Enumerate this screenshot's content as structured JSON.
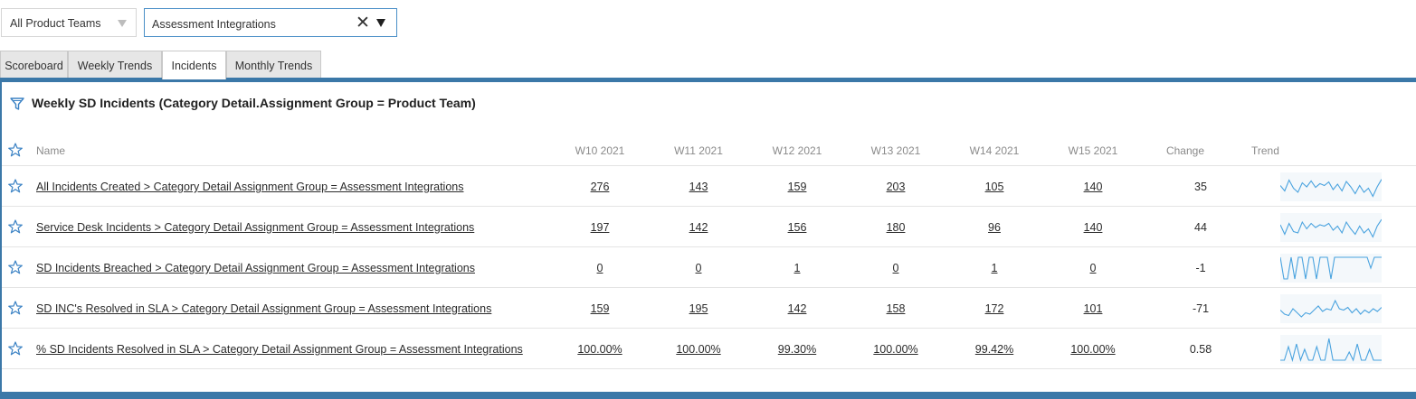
{
  "filters": {
    "product_teams": {
      "value": "All Product Teams"
    },
    "team": {
      "value": "Assessment Integrations",
      "clear_label": "✕"
    }
  },
  "tabs": [
    {
      "label": "Scoreboard",
      "active": false
    },
    {
      "label": "Weekly Trends",
      "active": false
    },
    {
      "label": "Incidents",
      "active": true
    },
    {
      "label": "Monthly Trends",
      "active": false
    }
  ],
  "panel": {
    "title": "Weekly SD Incidents (Category Detail.Assignment Group = Product Team)",
    "columns": {
      "name": "Name",
      "weeks": [
        "W10 2021",
        "W11 2021",
        "W12 2021",
        "W13 2021",
        "W14 2021",
        "W15 2021"
      ],
      "change": "Change",
      "trend": "Trend"
    },
    "rows": [
      {
        "name": "All Incidents Created > Category Detail Assignment Group = Assessment Integrations",
        "values": [
          "276",
          "143",
          "159",
          "203",
          "105",
          "140"
        ],
        "change": "35",
        "trend": [
          0.55,
          0.35,
          0.75,
          0.45,
          0.3,
          0.65,
          0.5,
          0.72,
          0.48,
          0.62,
          0.55,
          0.68,
          0.4,
          0.6,
          0.35,
          0.7,
          0.5,
          0.25,
          0.55,
          0.3,
          0.45,
          0.15,
          0.5,
          0.78
        ]
      },
      {
        "name": "Service Desk Incidents > Category Detail Assignment Group = Assessment Integrations",
        "values": [
          "197",
          "142",
          "156",
          "180",
          "96",
          "140"
        ],
        "change": "44",
        "trend": [
          0.6,
          0.25,
          0.65,
          0.35,
          0.3,
          0.7,
          0.45,
          0.65,
          0.5,
          0.6,
          0.55,
          0.65,
          0.4,
          0.55,
          0.3,
          0.7,
          0.45,
          0.25,
          0.55,
          0.3,
          0.45,
          0.15,
          0.55,
          0.8
        ]
      },
      {
        "name": "SD Incidents Breached > Category Detail Assignment Group = Assessment Integrations",
        "values": [
          "0",
          "0",
          "1",
          "0",
          "1",
          "0"
        ],
        "change": "-1",
        "trend": [
          0.9,
          0.1,
          0.1,
          0.9,
          0.1,
          0.9,
          0.9,
          0.1,
          0.9,
          0.9,
          0.1,
          0.9,
          0.9,
          0.9,
          0.1,
          0.9,
          0.9,
          0.9,
          0.9,
          0.9,
          0.9,
          0.9,
          0.9,
          0.9,
          0.9,
          0.5,
          0.9,
          0.9,
          0.9
        ]
      },
      {
        "name": "SD INC's Resolved in SLA > Category Detail Assignment Group = Assessment Integrations",
        "values": [
          "159",
          "195",
          "142",
          "158",
          "172",
          "101"
        ],
        "change": "-71",
        "trend": [
          0.45,
          0.3,
          0.25,
          0.5,
          0.35,
          0.2,
          0.35,
          0.3,
          0.45,
          0.6,
          0.4,
          0.5,
          0.45,
          0.8,
          0.5,
          0.45,
          0.55,
          0.35,
          0.5,
          0.3,
          0.45,
          0.35,
          0.5,
          0.4,
          0.55
        ]
      },
      {
        "name": "% SD Incidents Resolved in SLA > Category Detail Assignment Group = Assessment Integrations",
        "values": [
          "100.00%",
          "100.00%",
          "99.30%",
          "100.00%",
          "99.42%",
          "100.00%"
        ],
        "change": "0.58",
        "trend": [
          0.1,
          0.1,
          0.6,
          0.1,
          0.7,
          0.1,
          0.5,
          0.1,
          0.1,
          0.6,
          0.1,
          0.1,
          0.9,
          0.1,
          0.1,
          0.1,
          0.1,
          0.4,
          0.1,
          0.7,
          0.1,
          0.1,
          0.5,
          0.1,
          0.1,
          0.1
        ]
      }
    ]
  },
  "colors": {
    "accent": "#3b78a8",
    "sparkline": "#4aa3df",
    "star": "#3b82c4"
  },
  "icons": {
    "star": "star-icon",
    "filter": "filter-icon",
    "clear": "close-icon",
    "dropdown": "chevron-down-icon"
  }
}
